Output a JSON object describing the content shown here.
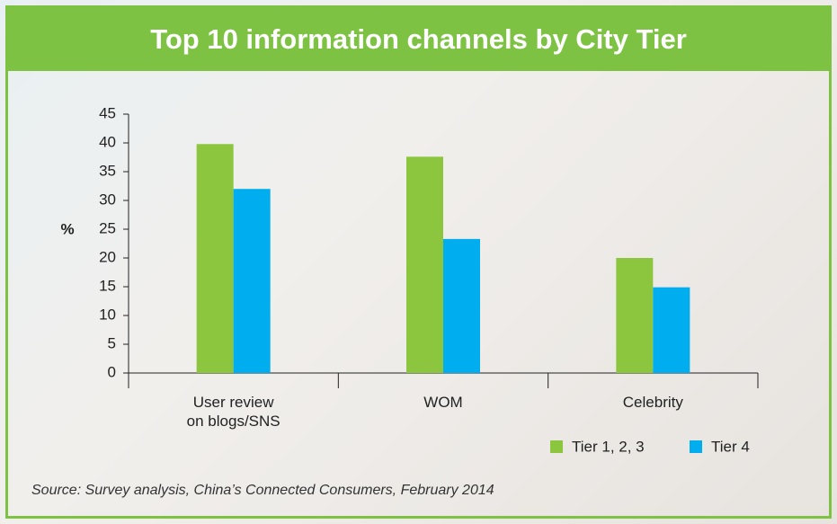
{
  "chart_data": {
    "type": "bar",
    "title": "Top 10 information channels by City Tier",
    "y_label": "%",
    "categories": [
      "User review on blogs/SNS",
      "WOM",
      "Celebrity"
    ],
    "series": [
      {
        "name": "Tier 1, 2, 3",
        "color": "#8cc63f",
        "values": [
          39.8,
          37.6,
          20
        ]
      },
      {
        "name": "Tier 4",
        "color": "#00aeef",
        "values": [
          32,
          23.3,
          14.9
        ]
      }
    ],
    "ylim": [
      0,
      45
    ],
    "yticks": [
      0,
      5,
      10,
      15,
      20,
      25,
      30,
      35,
      40,
      45
    ],
    "source": "Source: Survey analysis, China’s Connected Consumers, February 2014"
  }
}
